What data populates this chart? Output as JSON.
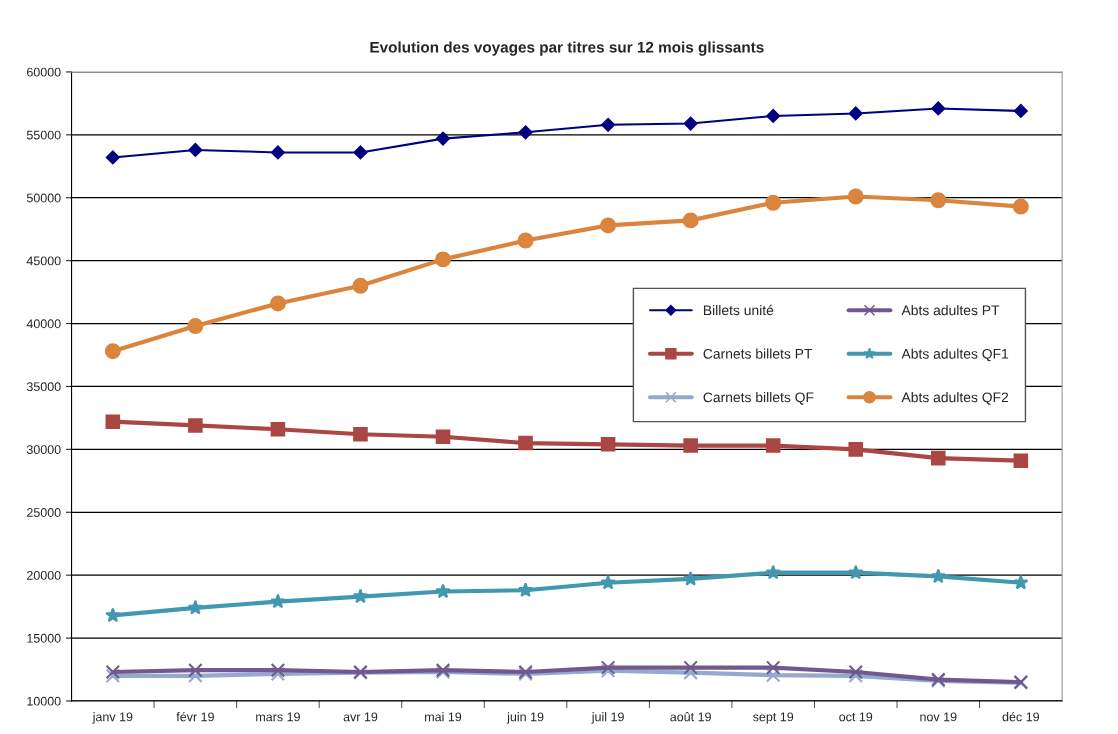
{
  "chart_data": {
    "type": "line",
    "title": "Evolution des voyages par titres sur 12 mois glissants",
    "categories": [
      "janv 19",
      "févr 19",
      "mars 19",
      "avr 19",
      "mai 19",
      "juin 19",
      "juil 19",
      "août 19",
      "sept 19",
      "oct 19",
      "nov 19",
      "déc 19"
    ],
    "series": [
      {
        "name": "Billets unité",
        "color": "#000080",
        "marker": "diamond",
        "values": [
          53200,
          53800,
          53600,
          53600,
          54700,
          55200,
          55800,
          55900,
          56500,
          56700,
          57100,
          56900
        ]
      },
      {
        "name": "Carnets billets PT",
        "color": "#aa4643",
        "marker": "square",
        "values": [
          32200,
          31900,
          31600,
          31200,
          31000,
          30500,
          30400,
          30300,
          30300,
          30000,
          29300,
          29100
        ]
      },
      {
        "name": "Carnets billets QF",
        "color": "#93a9cf",
        "marker": "cross",
        "values": [
          12000,
          12000,
          12150,
          12250,
          12300,
          12150,
          12400,
          12250,
          12050,
          12000,
          11600,
          11450
        ]
      },
      {
        "name": "Abts adultes PT",
        "color": "#71588f",
        "marker": "cross",
        "values": [
          12300,
          12450,
          12450,
          12300,
          12450,
          12300,
          12650,
          12650,
          12650,
          12300,
          11700,
          11500
        ]
      },
      {
        "name": "Abts adultes QF1",
        "color": "#4198af",
        "marker": "star",
        "values": [
          16800,
          17400,
          17900,
          18300,
          18700,
          18800,
          19400,
          19700,
          20200,
          20200,
          19900,
          19400
        ]
      },
      {
        "name": "Abts adultes QF2",
        "color": "#db843d",
        "marker": "circle",
        "values": [
          37800,
          39800,
          41600,
          43000,
          45100,
          46600,
          47800,
          48200,
          49600,
          50100,
          49800,
          49300
        ]
      }
    ],
    "ylim": [
      10000,
      60000
    ],
    "yticks": [
      10000,
      15000,
      20000,
      25000,
      30000,
      35000,
      40000,
      45000,
      50000,
      55000,
      60000
    ],
    "grid": "y",
    "legend": "right",
    "line_style": "solid"
  }
}
